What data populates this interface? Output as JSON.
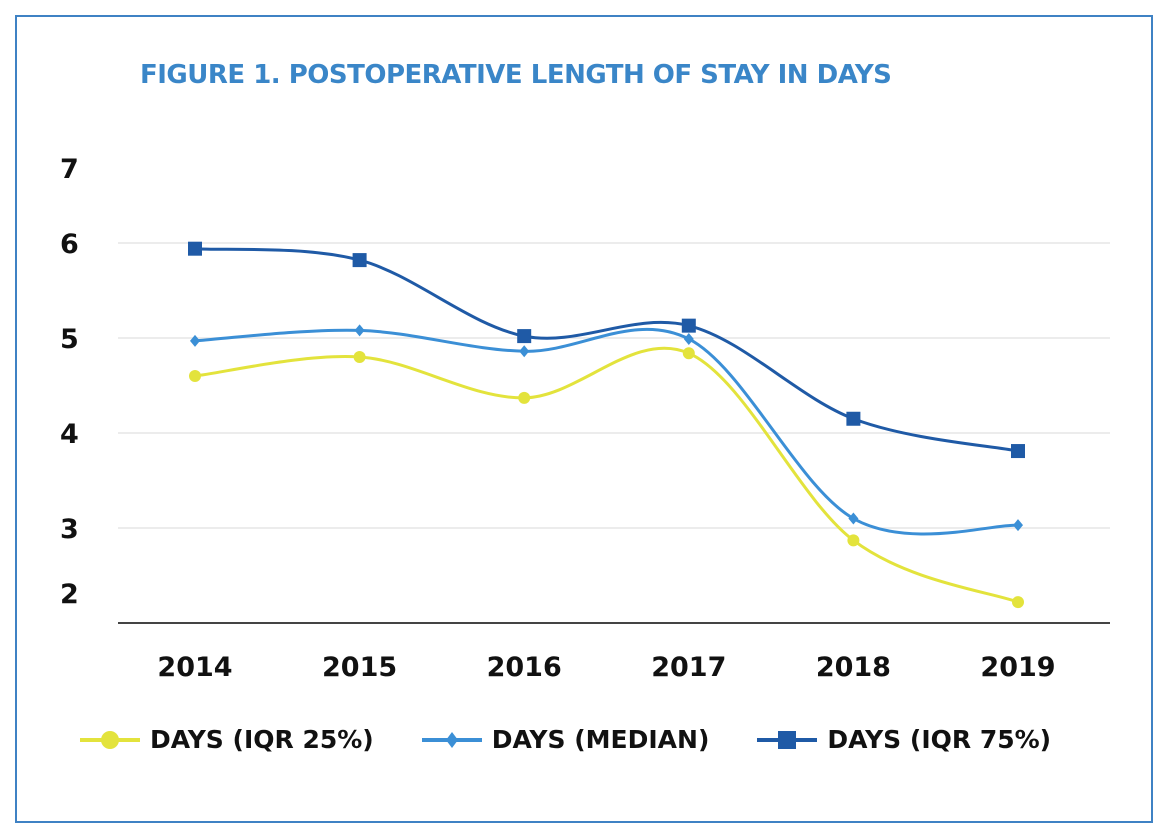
{
  "chart_data": {
    "type": "line",
    "title": "FIGURE 1. POSTOPERATIVE LENGTH OF STAY IN DAYS",
    "xlabel": "",
    "ylabel": "",
    "categories": [
      "2014",
      "2015",
      "2016",
      "2017",
      "2018",
      "2019"
    ],
    "y_ticks": [
      "2",
      "3",
      "4",
      "5",
      "6",
      "7"
    ],
    "ylim": [
      2,
      7
    ],
    "grid": true,
    "smooth": true,
    "legend_position": "bottom",
    "series": [
      {
        "name": "DAYS (IQR 25%)",
        "color": "#e3e33c",
        "marker": "circle",
        "values": [
          4.6,
          4.8,
          4.37,
          4.84,
          2.87,
          2.22
        ]
      },
      {
        "name": "DAYS (MEDIAN)",
        "color": "#3b8fd6",
        "marker": "diamond",
        "values": [
          4.97,
          5.08,
          4.86,
          4.99,
          3.1,
          3.03
        ]
      },
      {
        "name": "DAYS (IQR 75%)",
        "color": "#1f5aa6",
        "marker": "square",
        "values": [
          5.94,
          5.82,
          5.02,
          5.13,
          4.15,
          3.81
        ]
      }
    ]
  }
}
